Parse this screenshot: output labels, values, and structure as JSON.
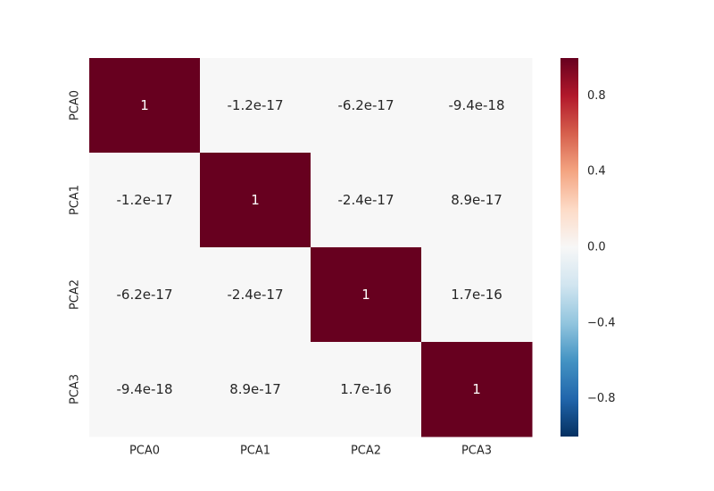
{
  "chart_data": {
    "type": "heatmap",
    "title": "",
    "xlabel": "",
    "ylabel": "",
    "x_categories": [
      "PCA0",
      "PCA1",
      "PCA2",
      "PCA3"
    ],
    "y_categories": [
      "PCA0",
      "PCA1",
      "PCA2",
      "PCA3"
    ],
    "values": [
      [
        1,
        -1.2e-17,
        -6.2e-17,
        -9.4e-18
      ],
      [
        -1.2e-17,
        1,
        -2.4e-17,
        8.9e-17
      ],
      [
        -6.2e-17,
        -2.4e-17,
        1,
        1.7e-16
      ],
      [
        -9.4e-18,
        8.9e-17,
        1.7e-16,
        1
      ]
    ],
    "annotations": [
      [
        "1",
        "-1.2e-17",
        "-6.2e-17",
        "-9.4e-18"
      ],
      [
        "-1.2e-17",
        "1",
        "-2.4e-17",
        "8.9e-17"
      ],
      [
        "-6.2e-17",
        "-2.4e-17",
        "1",
        "1.7e-16"
      ],
      [
        "-9.4e-18",
        "8.9e-17",
        "1.7e-16",
        "1"
      ]
    ],
    "colorbar": {
      "range": [
        -1,
        1
      ],
      "ticks": [
        0.8,
        0.4,
        0.0,
        -0.4,
        -0.8
      ],
      "tick_labels": [
        "0.8",
        "0.4",
        "0.0",
        "−0.4",
        "−0.8"
      ],
      "colormap": "RdBu_r",
      "stops": [
        "#053061",
        "#2166ac",
        "#4393c3",
        "#92c5de",
        "#d1e5f0",
        "#f7f7f7",
        "#fddbc7",
        "#f4a582",
        "#d6604d",
        "#b2182b",
        "#67001f"
      ]
    },
    "grid": false
  }
}
